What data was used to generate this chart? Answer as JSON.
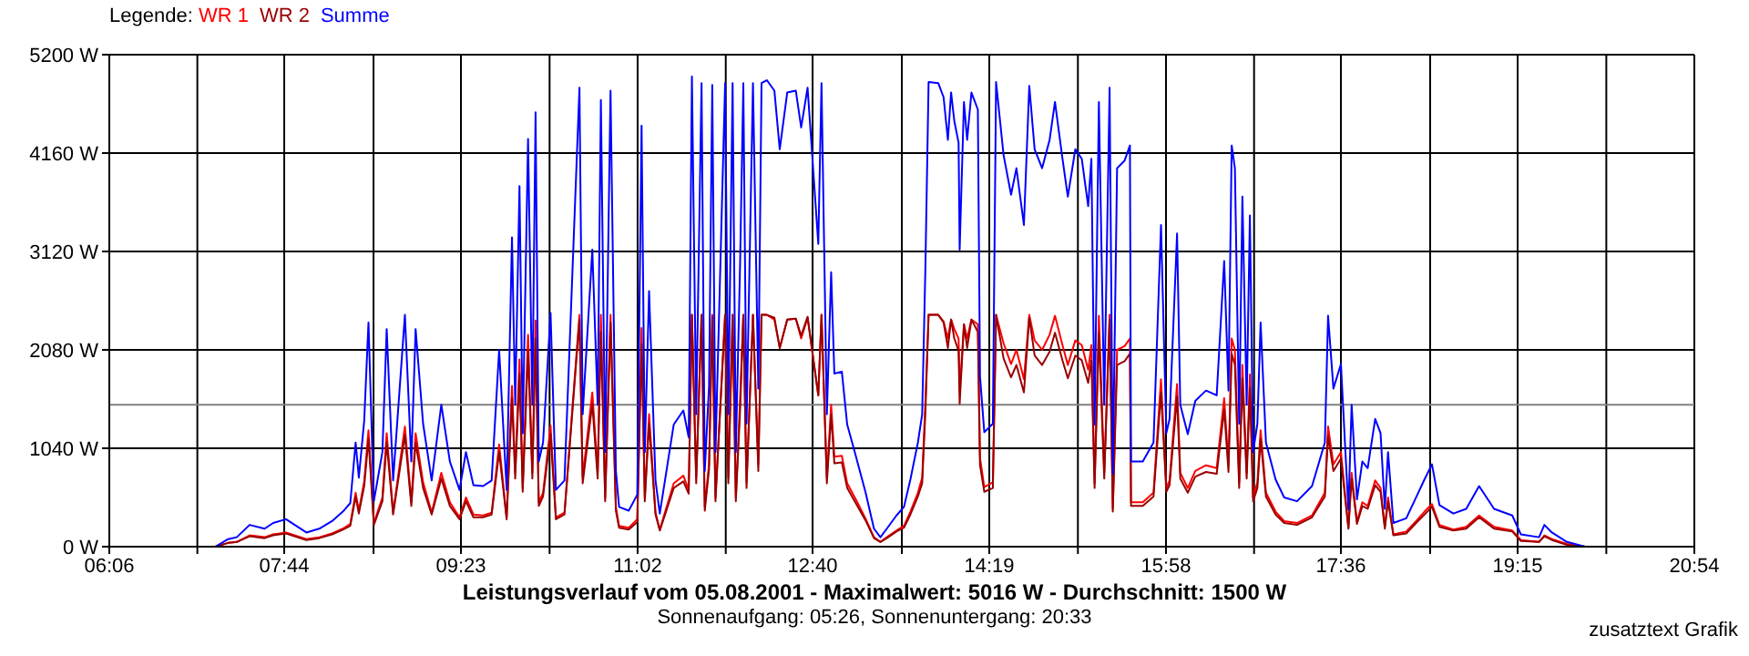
{
  "chart_data": {
    "type": "line",
    "title": "Leistungsverlauf vom 05.08.2001 - Maximalwert: 5016 W - Durchschnitt: 1500 W",
    "subtitle": "Sonnenaufgang: 05:26, Sonnenuntergang: 20:33",
    "legend_title": "Legende:",
    "legend": "top left",
    "grid": true,
    "annotations": [
      "zusatztext Grafik"
    ],
    "xlim": [
      6.1,
      20.9
    ],
    "xticks": [
      {
        "value": 6.1,
        "label": "06:06"
      },
      {
        "value": 6.922,
        "label": null
      },
      {
        "value": 7.7333,
        "label": "07:44"
      },
      {
        "value": 8.567,
        "label": null
      },
      {
        "value": 9.3833,
        "label": "09:23"
      },
      {
        "value": 10.211,
        "label": null
      },
      {
        "value": 11.033,
        "label": "11:02"
      },
      {
        "value": 11.856,
        "label": null
      },
      {
        "value": 12.6667,
        "label": "12:40"
      },
      {
        "value": 13.5,
        "label": null
      },
      {
        "value": 14.3167,
        "label": "14:19"
      },
      {
        "value": 15.144,
        "label": null
      },
      {
        "value": 15.9667,
        "label": "15:58"
      },
      {
        "value": 16.789,
        "label": null
      },
      {
        "value": 17.6,
        "label": "17:36"
      },
      {
        "value": 18.433,
        "label": null
      },
      {
        "value": 19.25,
        "label": "19:15"
      },
      {
        "value": 20.078,
        "label": null
      },
      {
        "value": 20.9,
        "label": "20:54"
      }
    ],
    "ylim": [
      0,
      5200
    ],
    "yticks": [
      {
        "value": 0,
        "label": "0 W"
      },
      {
        "value": 1040,
        "label": "1040 W"
      },
      {
        "value": 2080,
        "label": "2080 W"
      },
      {
        "value": 3120,
        "label": "3120 W"
      },
      {
        "value": 4160,
        "label": "4160 W"
      },
      {
        "value": 5200,
        "label": "5200 W"
      }
    ],
    "ref_lines": [
      {
        "axis": "y",
        "value": 1500,
        "color": "#808080"
      }
    ],
    "x": [
      7.09,
      7.21,
      7.29,
      7.41,
      7.55,
      7.63,
      7.75,
      7.94,
      8.06,
      8.18,
      8.28,
      8.35,
      8.4,
      8.43,
      8.48,
      8.52,
      8.57,
      8.65,
      8.69,
      8.75,
      8.86,
      8.92,
      8.96,
      9.03,
      9.11,
      9.2,
      9.28,
      9.37,
      9.43,
      9.5,
      9.59,
      9.67,
      9.74,
      9.81,
      9.86,
      9.89,
      9.93,
      9.96,
      10.01,
      10.05,
      10.08,
      10.11,
      10.15,
      10.22,
      10.27,
      10.35,
      10.49,
      10.52,
      10.61,
      10.66,
      10.69,
      10.73,
      10.78,
      10.83,
      10.86,
      10.95,
      11.03,
      11.07,
      11.1,
      11.14,
      11.2,
      11.24,
      11.37,
      11.46,
      11.51,
      11.54,
      11.58,
      11.63,
      11.66,
      11.7,
      11.73,
      11.76,
      11.85,
      11.88,
      11.92,
      11.95,
      11.99,
      12.02,
      12.05,
      12.11,
      12.16,
      12.19,
      12.24,
      12.31,
      12.36,
      12.43,
      12.51,
      12.56,
      12.62,
      12.72,
      12.75,
      12.8,
      12.84,
      12.87,
      12.94,
      12.99,
      13.07,
      13.16,
      13.24,
      13.3,
      13.36,
      13.45,
      13.52,
      13.58,
      13.65,
      13.69,
      13.72,
      13.75,
      13.84,
      13.89,
      13.93,
      13.96,
      13.99,
      14.03,
      14.04,
      14.08,
      14.11,
      14.15,
      14.21,
      14.23,
      14.27,
      14.35,
      14.38,
      14.45,
      14.52,
      14.57,
      14.64,
      14.69,
      14.74,
      14.81,
      14.88,
      14.93,
      15.0,
      15.05,
      15.12,
      15.18,
      15.24,
      15.27,
      15.3,
      15.34,
      15.39,
      15.44,
      15.47,
      15.51,
      15.58,
      15.63,
      15.64,
      15.75,
      15.85,
      15.92,
      15.97,
      16.0,
      16.07,
      16.1,
      16.17,
      16.24,
      16.34,
      16.44,
      16.51,
      16.55,
      16.58,
      16.61,
      16.65,
      16.68,
      16.72,
      16.75,
      16.78,
      16.82,
      16.85,
      16.9,
      16.99,
      17.07,
      17.19,
      17.33,
      17.45,
      17.48,
      17.53,
      17.6,
      17.67,
      17.7,
      17.75,
      17.8,
      17.85,
      17.92,
      17.97,
      18.01,
      18.04,
      18.09,
      18.21,
      18.31,
      18.38,
      18.45,
      18.52,
      18.65,
      18.77,
      18.89,
      19.03,
      19.2,
      19.28,
      19.45,
      19.5,
      19.57,
      19.71,
      19.88
    ],
    "series": [
      {
        "name": "WR 1",
        "color": "#ff0000",
        "values": [
          0,
          40,
          50,
          120,
          100,
          130,
          150,
          80,
          100,
          140,
          190,
          240,
          570,
          380,
          690,
          1230,
          250,
          520,
          1200,
          360,
          1270,
          470,
          1200,
          680,
          360,
          780,
          470,
          310,
          520,
          340,
          330,
          360,
          1080,
          310,
          1700,
          780,
          1980,
          620,
          2240,
          780,
          2390,
          470,
          570,
          1280,
          310,
          360,
          2450,
          730,
          1630,
          780,
          2450,
          520,
          2450,
          420,
          220,
          200,
          290,
          2310,
          520,
          1400,
          360,
          180,
          670,
          750,
          600,
          2450,
          730,
          2450,
          420,
          880,
          2450,
          520,
          2450,
          730,
          2450,
          520,
          1560,
          2450,
          680,
          2450,
          870,
          2450,
          2450,
          2400,
          2100,
          2400,
          2410,
          2200,
          2420,
          1600,
          2450,
          730,
          1500,
          950,
          960,
          670,
          500,
          300,
          100,
          50,
          100,
          170,
          220,
          370,
          570,
          730,
          1530,
          2450,
          2450,
          2380,
          2200,
          2400,
          2300,
          2200,
          1630,
          2350,
          2200,
          2400,
          2350,
          940,
          630,
          680,
          2450,
          2150,
          1930,
          2080,
          1770,
          2450,
          2180,
          2080,
          2240,
          2440,
          2130,
          1920,
          2180,
          2130,
          1870,
          2130,
          670,
          2440,
          780,
          2450,
          400,
          2080,
          2120,
          2200,
          470,
          470,
          570,
          1770,
          620,
          700,
          1720,
          780,
          620,
          800,
          860,
          830,
          1570,
          860,
          2200,
          2080,
          680,
          1920,
          780,
          1820,
          520,
          680,
          1230,
          570,
          370,
          270,
          250,
          330,
          570,
          1270,
          870,
          1000,
          200,
          780,
          260,
          470,
          430,
          700,
          620,
          210,
          520,
          130,
          160,
          280,
          370,
          450,
          230,
          180,
          210,
          330,
          210,
          170,
          70,
          50,
          120,
          80,
          30,
          0
        ]
      },
      {
        "name": "WR 2",
        "color": "#990000",
        "values": [
          0,
          40,
          50,
          110,
          90,
          120,
          140,
          70,
          90,
          130,
          180,
          220,
          530,
          350,
          640,
          1140,
          230,
          480,
          1100,
          340,
          1180,
          430,
          1100,
          620,
          340,
          720,
          430,
          290,
          480,
          310,
          310,
          340,
          1000,
          290,
          1570,
          720,
          1830,
          580,
          2070,
          720,
          2200,
          430,
          530,
          1190,
          290,
          340,
          2400,
          670,
          1510,
          720,
          2270,
          480,
          2370,
          380,
          200,
          180,
          260,
          2140,
          480,
          1300,
          340,
          170,
          620,
          690,
          560,
          2450,
          670,
          2450,
          380,
          820,
          2430,
          480,
          2450,
          670,
          2450,
          480,
          1440,
          2450,
          620,
          2450,
          800,
          2450,
          2450,
          2420,
          2100,
          2400,
          2410,
          2230,
          2430,
          1600,
          2450,
          670,
          1400,
          880,
          890,
          620,
          460,
          280,
          90,
          50,
          90,
          160,
          200,
          340,
          530,
          670,
          1420,
          2450,
          2450,
          2370,
          2100,
          2400,
          2200,
          2070,
          1510,
          2350,
          2100,
          2400,
          2270,
          860,
          580,
          620,
          2450,
          1990,
          1790,
          1920,
          1630,
          2420,
          2020,
          1920,
          2060,
          2260,
          1970,
          1780,
          2020,
          1970,
          1730,
          1970,
          620,
          2260,
          720,
          2400,
          370,
          1920,
          1960,
          2040,
          430,
          430,
          530,
          1630,
          580,
          650,
          1590,
          720,
          570,
          740,
          790,
          770,
          1450,
          790,
          2040,
          1920,
          620,
          1780,
          720,
          1680,
          480,
          620,
          1140,
          530,
          340,
          250,
          230,
          310,
          530,
          1170,
          800,
          930,
          190,
          720,
          240,
          430,
          400,
          650,
          580,
          190,
          480,
          120,
          140,
          260,
          340,
          420,
          210,
          170,
          190,
          310,
          190,
          160,
          60,
          50,
          110,
          70,
          20,
          0
        ]
      },
      {
        "name": "Summe",
        "color": "#0000ff",
        "values": [
          0,
          80,
          100,
          230,
          190,
          250,
          290,
          150,
          190,
          270,
          370,
          460,
          1100,
          730,
          1330,
          2370,
          480,
          1000,
          2300,
          700,
          2450,
          900,
          2300,
          1300,
          700,
          1500,
          900,
          600,
          1000,
          650,
          640,
          700,
          2080,
          600,
          3270,
          1500,
          3810,
          1200,
          4310,
          1500,
          4590,
          900,
          1100,
          2470,
          600,
          700,
          4850,
          1400,
          3140,
          1500,
          4720,
          1000,
          4820,
          800,
          420,
          380,
          550,
          4450,
          1000,
          2700,
          700,
          350,
          1290,
          1440,
          1155,
          4970,
          1400,
          4900,
          800,
          1700,
          4880,
          1000,
          4900,
          1400,
          4900,
          1000,
          3000,
          4900,
          1300,
          4900,
          1670,
          4900,
          4930,
          4820,
          4200,
          4800,
          4820,
          4430,
          4850,
          3200,
          4900,
          1400,
          2900,
          1830,
          1850,
          1290,
          960,
          580,
          190,
          100,
          190,
          330,
          420,
          710,
          1100,
          1400,
          2950,
          4910,
          4900,
          4750,
          4300,
          4800,
          4500,
          4270,
          3140,
          4700,
          4300,
          4800,
          4620,
          1800,
          1210,
          1300,
          4910,
          4140,
          3720,
          4000,
          3400,
          4870,
          4200,
          4000,
          4300,
          4700,
          4100,
          3700,
          4200,
          4100,
          3600,
          4100,
          1290,
          4700,
          1500,
          4850,
          770,
          4000,
          4080,
          4240,
          900,
          900,
          1100,
          3400,
          1200,
          1350,
          3310,
          1500,
          1190,
          1540,
          1650,
          1600,
          3020,
          1650,
          4240,
          4000,
          1300,
          3700,
          1500,
          3500,
          1000,
          1300,
          2370,
          1100,
          710,
          520,
          480,
          640,
          1100,
          2440,
          1670,
          1930,
          390,
          1500,
          500,
          900,
          830,
          1350,
          1200,
          400,
          1000,
          250,
          300,
          540,
          710,
          870,
          440,
          350,
          400,
          640,
          400,
          330,
          130,
          100,
          230,
          150,
          50,
          0
        ]
      }
    ]
  }
}
